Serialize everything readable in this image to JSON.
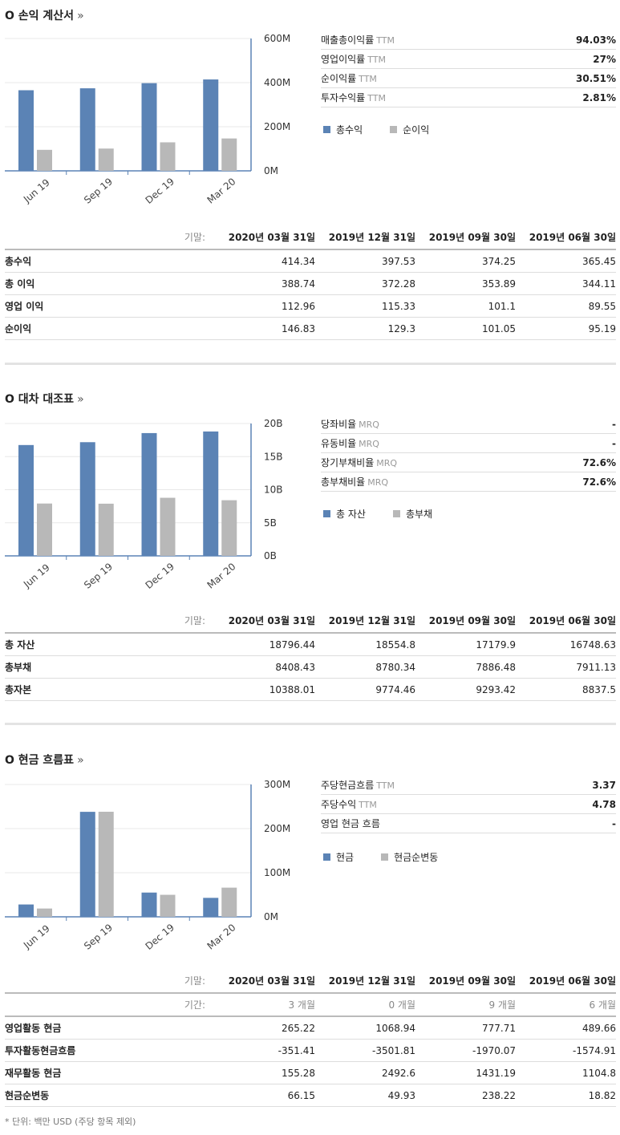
{
  "colors": {
    "blue": "#5b83b5",
    "gray": "#b8b8b8"
  },
  "sections": [
    {
      "title": "O 손익 계산서",
      "arrow": "»",
      "ratios": [
        {
          "label": "매출총이익률",
          "suffix": "TTM",
          "value": "94.03%"
        },
        {
          "label": "영업이익률",
          "suffix": "TTM",
          "value": "27%"
        },
        {
          "label": "순이익률",
          "suffix": "TTM",
          "value": "30.51%"
        },
        {
          "label": "투자수익률",
          "suffix": "TTM",
          "value": "2.81%"
        }
      ],
      "legend": [
        "총수익",
        "순이익"
      ],
      "table": {
        "header_label": "기말:",
        "columns": [
          "2020년 03월 31일",
          "2019년 12월 31일",
          "2019년 09월 30일",
          "2019년 06월 30일"
        ],
        "rows": [
          {
            "name": "총수익",
            "values": [
              "414.34",
              "397.53",
              "374.25",
              "365.45"
            ]
          },
          {
            "name": "총 이익",
            "values": [
              "388.74",
              "372.28",
              "353.89",
              "344.11"
            ]
          },
          {
            "name": "영업 이익",
            "values": [
              "112.96",
              "115.33",
              "101.1",
              "89.55"
            ]
          },
          {
            "name": "순이익",
            "values": [
              "146.83",
              "129.3",
              "101.05",
              "95.19"
            ]
          }
        ]
      }
    },
    {
      "title": "O 대차 대조표",
      "arrow": "»",
      "ratios": [
        {
          "label": "당좌비율",
          "suffix": "MRQ",
          "value": "-"
        },
        {
          "label": "유동비율",
          "suffix": "MRQ",
          "value": "-"
        },
        {
          "label": "장기부채비율",
          "suffix": "MRQ",
          "value": "72.6%"
        },
        {
          "label": "총부채비율",
          "suffix": "MRQ",
          "value": "72.6%"
        }
      ],
      "legend": [
        "총 자산",
        "총부채"
      ],
      "table": {
        "header_label": "기말:",
        "columns": [
          "2020년 03월 31일",
          "2019년 12월 31일",
          "2019년 09월 30일",
          "2019년 06월 30일"
        ],
        "rows": [
          {
            "name": "총 자산",
            "values": [
              "18796.44",
              "18554.8",
              "17179.9",
              "16748.63"
            ]
          },
          {
            "name": "총부채",
            "values": [
              "8408.43",
              "8780.34",
              "7886.48",
              "7911.13"
            ]
          },
          {
            "name": "총자본",
            "values": [
              "10388.01",
              "9774.46",
              "9293.42",
              "8837.5"
            ]
          }
        ]
      }
    },
    {
      "title": "O 현금 흐름표",
      "arrow": "»",
      "ratios": [
        {
          "label": "주당현금흐름",
          "suffix": "TTM",
          "value": "3.37"
        },
        {
          "label": "주당수익",
          "suffix": "TTM",
          "value": "4.78"
        },
        {
          "label": "영업 현금 흐름",
          "suffix": "",
          "value": "-"
        }
      ],
      "legend": [
        "현금",
        "현금순변동"
      ],
      "table": {
        "header_label": "기말:",
        "columns": [
          "2020년 03월 31일",
          "2019년 12월 31일",
          "2019년 09월 30일",
          "2019년 06월 30일"
        ],
        "sub_label": "기간:",
        "sub_values": [
          "3 개월",
          "0 개월",
          "9 개월",
          "6 개월"
        ],
        "rows": [
          {
            "name": "영업활동 현금",
            "values": [
              "265.22",
              "1068.94",
              "777.71",
              "489.66"
            ]
          },
          {
            "name": "투자활동현금흐름",
            "values": [
              "-351.41",
              "-3501.81",
              "-1970.07",
              "-1574.91"
            ]
          },
          {
            "name": "재무활동 현금",
            "values": [
              "155.28",
              "2492.6",
              "1431.19",
              "1104.8"
            ]
          },
          {
            "name": "현금순변동",
            "values": [
              "66.15",
              "49.93",
              "238.22",
              "18.82"
            ]
          }
        ]
      }
    }
  ],
  "chart_data": [
    {
      "type": "bar",
      "categories": [
        "Jun 19",
        "Sep 19",
        "Dec 19",
        "Mar 20"
      ],
      "series": [
        {
          "name": "총수익",
          "values": [
            365.45,
            374.25,
            397.53,
            414.34
          ]
        },
        {
          "name": "순이익",
          "values": [
            95.19,
            101.05,
            129.3,
            146.83
          ]
        }
      ],
      "ylim": [
        0,
        600
      ],
      "yticks": [
        "0M",
        "200M",
        "400M",
        "600M"
      ],
      "ytick_values": [
        0,
        200,
        400,
        600
      ]
    },
    {
      "type": "bar",
      "categories": [
        "Jun 19",
        "Sep 19",
        "Dec 19",
        "Mar 20"
      ],
      "series": [
        {
          "name": "총 자산",
          "values": [
            16748.63,
            17179.9,
            18554.8,
            18796.44
          ]
        },
        {
          "name": "총부채",
          "values": [
            7911.13,
            7886.48,
            8780.34,
            8408.43
          ]
        }
      ],
      "ylim": [
        0,
        20000
      ],
      "yticks": [
        "0B",
        "5B",
        "10B",
        "15B",
        "20B"
      ],
      "ytick_values": [
        0,
        5000,
        10000,
        15000,
        20000
      ]
    },
    {
      "type": "bar",
      "categories": [
        "Jun 19",
        "Sep 19",
        "Dec 19",
        "Mar 20"
      ],
      "series": [
        {
          "name": "현금",
          "values": [
            28,
            238,
            55,
            43
          ]
        },
        {
          "name": "현금순변동",
          "values": [
            18.82,
            238.22,
            49.93,
            66.15
          ]
        }
      ],
      "ylim": [
        0,
        300
      ],
      "yticks": [
        "0M",
        "100M",
        "200M",
        "300M"
      ],
      "ytick_values": [
        0,
        100,
        200,
        300
      ]
    }
  ],
  "footnote": "* 단위: 백만 USD (주당 항목 제외)"
}
